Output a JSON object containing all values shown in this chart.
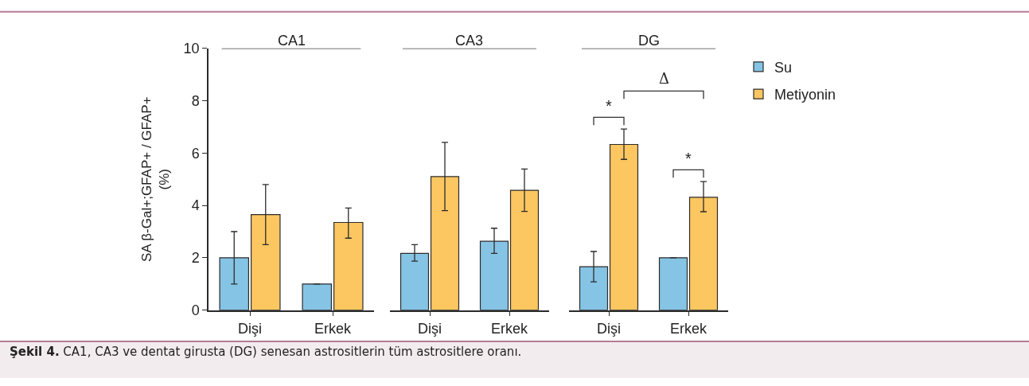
{
  "chart_data": [
    {
      "type": "bar",
      "title": "CA1",
      "ylabel": "SA β-Gal+;GFAP+ / GFAP+ (%)",
      "categories": [
        "Dişi",
        "Erkek"
      ],
      "ylim": [
        0,
        10
      ],
      "yticks": [
        0,
        2,
        4,
        6,
        8,
        10
      ],
      "series": [
        {
          "color": "#85c4e4",
          "values": [
            2.0,
            1.0
          ],
          "errors": [
            [
              1.0,
              3.0
            ],
            null
          ]
        },
        {
          "color": "#fcc661",
          "values": [
            3.65,
            3.35
          ],
          "errors": [
            [
              2.5,
              4.8
            ],
            [
              2.75,
              3.9
            ]
          ]
        }
      ],
      "annotations": [
        "Şekil 4. CA1, CA3 ve dentat girusta (DG) senesan astrositlerin tüm astrositlere oranı."
      ]
    },
    {
      "type": "bar",
      "title": "CA3",
      "categories": [
        "Dişi",
        "Erkek"
      ],
      "ylim": [
        0,
        10
      ],
      "tick_labels": "x",
      "series": [
        {
          "color": "#85c4e4",
          "values": [
            2.17,
            2.63
          ],
          "errors": [
            [
              1.87,
              2.5
            ],
            [
              2.17,
              3.13
            ]
          ]
        },
        {
          "color": "#fcc661",
          "values": [
            5.1,
            4.58
          ],
          "errors": [
            [
              3.8,
              6.41
            ],
            [
              3.77,
              5.39
            ]
          ]
        }
      ]
    },
    {
      "type": "bar",
      "title": "DG",
      "categories": [
        "Dişi",
        "Erkek"
      ],
      "ylim": [
        0,
        10
      ],
      "tick_labels": "x",
      "legend": "right",
      "series": [
        {
          "name": "Su",
          "color": "#85c4e4",
          "values": [
            1.66,
            2.0
          ],
          "errors": [
            [
              1.08,
              2.24
            ],
            null
          ]
        },
        {
          "name": "Metiyonin",
          "color": "#fcc661",
          "values": [
            6.33,
            4.31
          ],
          "errors": [
            [
              5.76,
              6.92
            ],
            [
              3.76,
              4.91
            ]
          ]
        }
      ],
      "annotations": [
        "*",
        "*",
        "Δ"
      ]
    }
  ]
}
